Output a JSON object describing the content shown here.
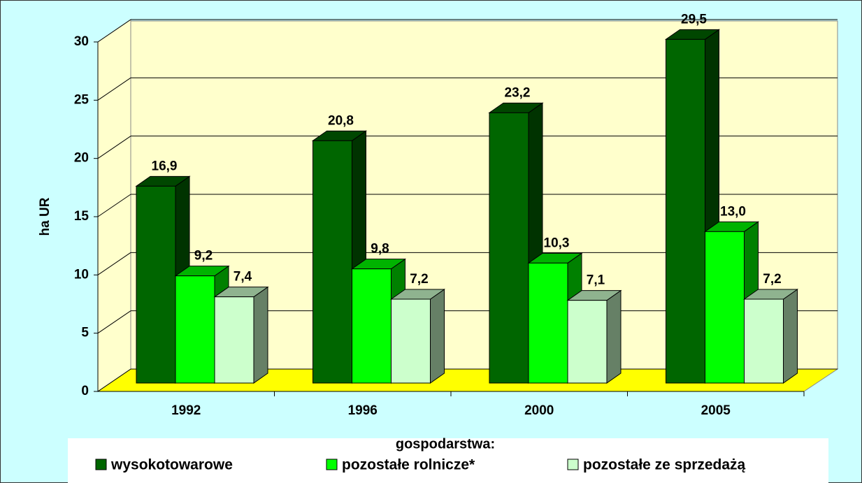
{
  "chart_data": {
    "type": "bar3d",
    "y_label": "ha UR",
    "legend_title": "gospodarstwa:",
    "categories": [
      "1992",
      "1996",
      "2000",
      "2005"
    ],
    "series": [
      {
        "name": "wysokotowarowe",
        "color": "#006600",
        "values": [
          16.9,
          20.8,
          23.2,
          29.5
        ],
        "value_labels": [
          "16,9",
          "20,8",
          "23,2",
          "29,5"
        ]
      },
      {
        "name": "pozostałe rolnicze*",
        "color": "#00ff00",
        "values": [
          9.2,
          9.8,
          10.3,
          13.0
        ],
        "value_labels": [
          "9,2",
          "9,8",
          "10,3",
          "13,0"
        ]
      },
      {
        "name": "pozostałe ze sprzedażą",
        "color": "#ccffcc",
        "values": [
          7.4,
          7.2,
          7.1,
          7.2
        ],
        "value_labels": [
          "7,4",
          "7,2",
          "7,1",
          "7,2"
        ]
      }
    ],
    "ylim": [
      0,
      30
    ],
    "yticks": [
      0,
      5,
      10,
      15,
      20,
      25,
      30
    ],
    "grid": true
  }
}
